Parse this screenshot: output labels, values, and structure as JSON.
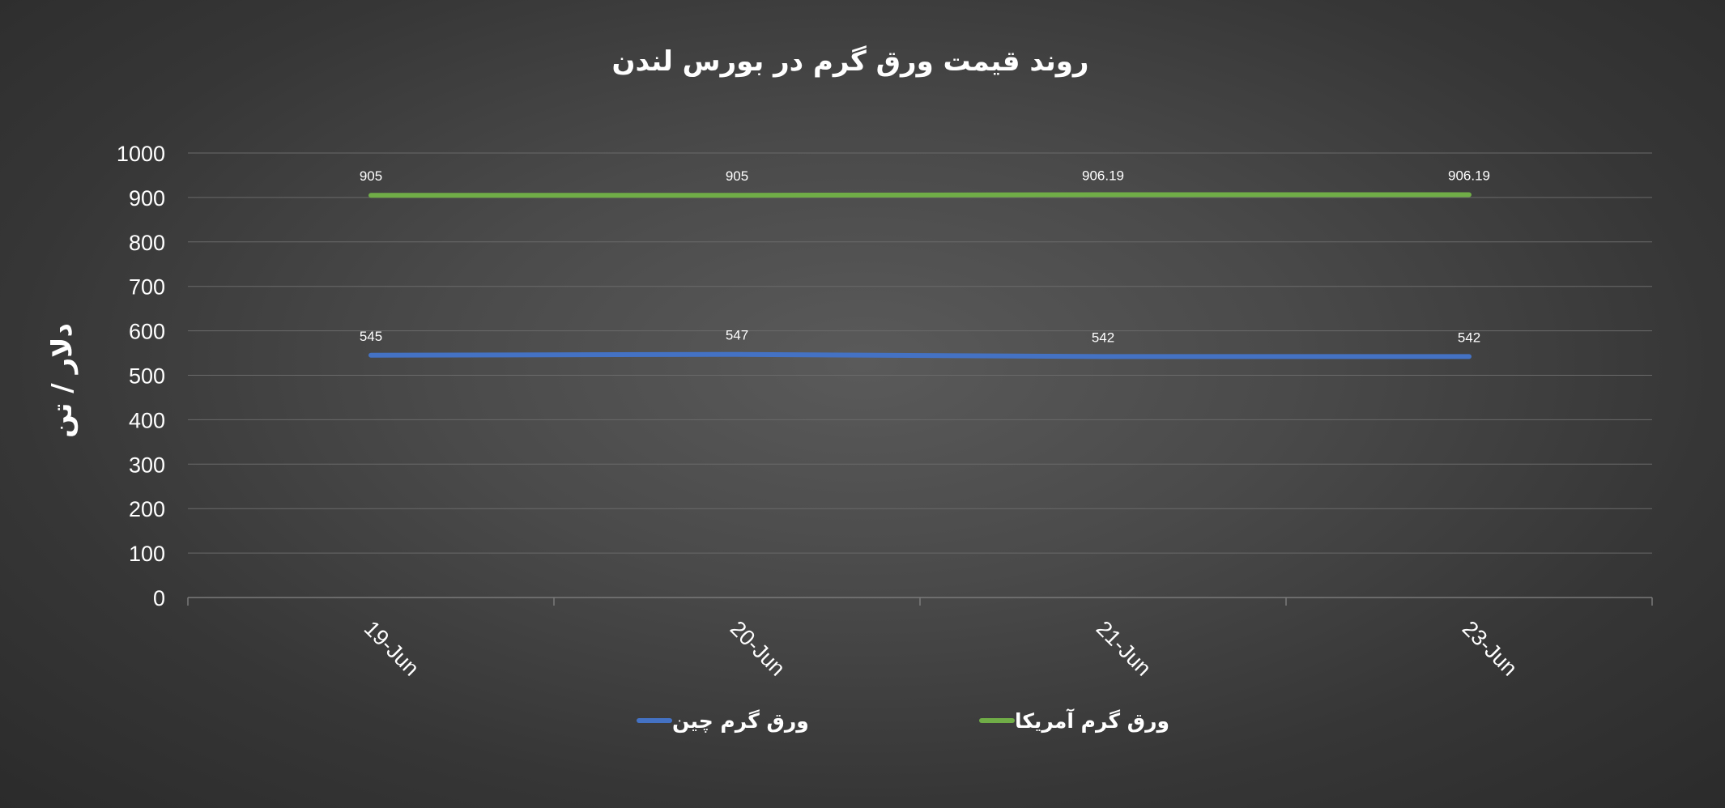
{
  "chart_data": {
    "type": "line",
    "title": "روند قیمت ورق گرم در بورس لندن",
    "xlabel": "",
    "ylabel": "دلار / تن",
    "categories": [
      "19-Jun",
      "20-Jun",
      "21-Jun",
      "23-Jun"
    ],
    "ylim": [
      0,
      1000
    ],
    "yticks": [
      0,
      100,
      200,
      300,
      400,
      500,
      600,
      700,
      800,
      900,
      1000
    ],
    "grid": true,
    "legend_position": "bottom",
    "series": [
      {
        "name": "ورق گرم چین",
        "color": "#4472c4",
        "values": [
          545,
          547,
          542,
          542
        ],
        "labels": [
          "545",
          "547",
          "542",
          "542"
        ]
      },
      {
        "name": "ورق گرم آمریکا",
        "color": "#70ad47",
        "values": [
          905,
          905,
          906.19,
          906.19
        ],
        "labels": [
          "905",
          "905",
          "906.19",
          "906.19"
        ]
      }
    ]
  }
}
